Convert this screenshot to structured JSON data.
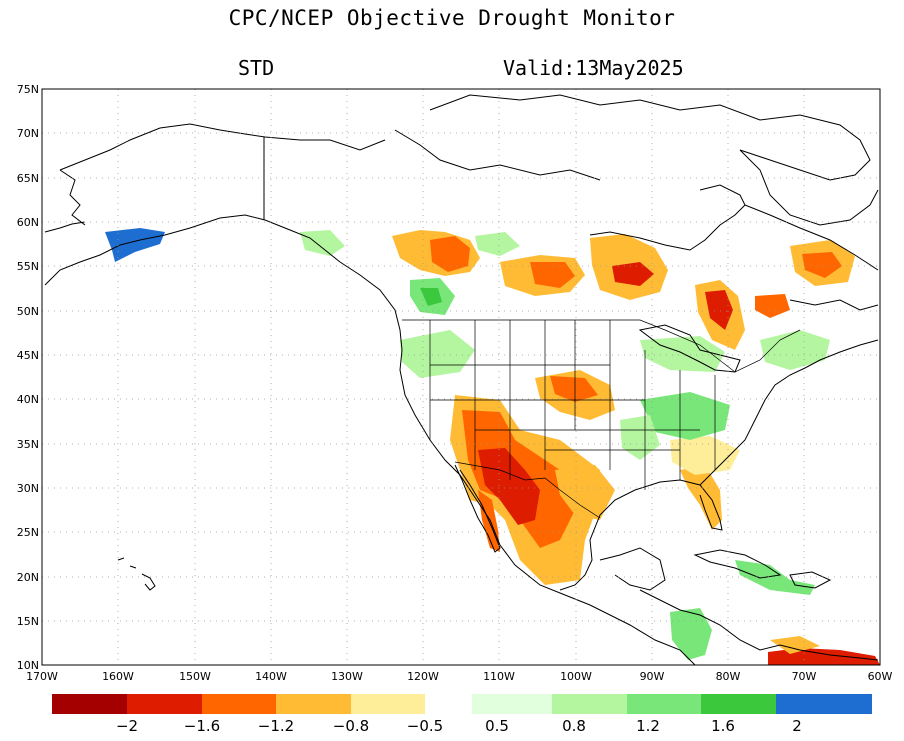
{
  "title": "CPC/NCEP Objective Drought Monitor",
  "subtitle_left": "STD",
  "subtitle_right": "Valid:13May2025",
  "lat_labels": [
    "75N",
    "70N",
    "65N",
    "60N",
    "55N",
    "50N",
    "45N",
    "40N",
    "35N",
    "30N",
    "25N",
    "20N",
    "15N",
    "10N"
  ],
  "lon_labels": [
    "170W",
    "160W",
    "150W",
    "140W",
    "130W",
    "120W",
    "110W",
    "100W",
    "90W",
    "80W",
    "70W",
    "60W"
  ],
  "colorbar": {
    "colors": [
      "#a50000",
      "#dd1c00",
      "#ff6600",
      "#ffbb33",
      "#ffee99",
      "#ffffff",
      "#e1ffdc",
      "#b4f5a0",
      "#78e678",
      "#3cc83c",
      "#1e6ed2"
    ],
    "labels": [
      "−2",
      "−1.6",
      "−1.2",
      "−0.8",
      "−0.5",
      "0.5",
      "0.8",
      "1.2",
      "1.6",
      "2"
    ]
  },
  "colors": {
    "land_outline": "#000000",
    "grid": "#999999",
    "dry_strong": "#dd1c00",
    "dry_mod": "#ff6600",
    "dry_weak": "#ffbb33",
    "dry_light": "#ffee99",
    "wet_light": "#b4f5a0",
    "wet_mod": "#78e678",
    "wet_strong": "#1e6ed2"
  }
}
